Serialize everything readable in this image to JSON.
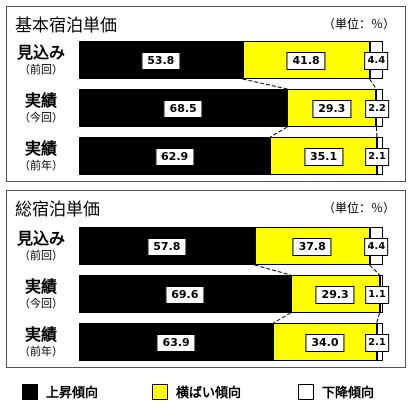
{
  "chart_data": [
    {
      "type": "bar",
      "stacked": true,
      "orientation": "horizontal",
      "title": "基本宿泊単価",
      "unit_label": "（単位：％）",
      "rows": [
        {
          "label": "見込み",
          "sublabel": "（前回）"
        },
        {
          "label": "実績",
          "sublabel": "（今回）"
        },
        {
          "label": "実績",
          "sublabel": "（前年）"
        }
      ],
      "series": [
        {
          "name": "上昇傾向",
          "values": [
            53.8,
            68.5,
            62.9
          ]
        },
        {
          "name": "横ばい傾向",
          "values": [
            41.8,
            29.3,
            35.1
          ]
        },
        {
          "name": "下降傾向",
          "values": [
            4.4,
            2.2,
            2.1
          ]
        }
      ],
      "value_labels": [
        [
          "53.8",
          "41.8",
          "4.4"
        ],
        [
          "68.5",
          "29.3",
          "2.2"
        ],
        [
          "62.9",
          "35.1",
          "2.1"
        ]
      ]
    },
    {
      "type": "bar",
      "stacked": true,
      "orientation": "horizontal",
      "title": "総宿泊単価",
      "unit_label": "（単位：％）",
      "rows": [
        {
          "label": "見込み",
          "sublabel": "（前回）"
        },
        {
          "label": "実績",
          "sublabel": "（今回）"
        },
        {
          "label": "実績",
          "sublabel": "（前年）"
        }
      ],
      "series": [
        {
          "name": "上昇傾向",
          "values": [
            57.8,
            69.6,
            63.9
          ]
        },
        {
          "name": "横ばい傾向",
          "values": [
            37.8,
            29.3,
            34.0
          ]
        },
        {
          "name": "下降傾向",
          "values": [
            4.4,
            1.1,
            2.1
          ]
        }
      ],
      "value_labels": [
        [
          "57.8",
          "37.8",
          "4.4"
        ],
        [
          "69.6",
          "29.3",
          "1.1"
        ],
        [
          "63.9",
          "34.0",
          "2.1"
        ]
      ]
    }
  ],
  "legend": [
    {
      "label": "上昇傾向",
      "color": "#000000"
    },
    {
      "label": "横ばい傾向",
      "color": "#ffff00"
    },
    {
      "label": "下降傾向",
      "color": "#ffffff"
    }
  ]
}
